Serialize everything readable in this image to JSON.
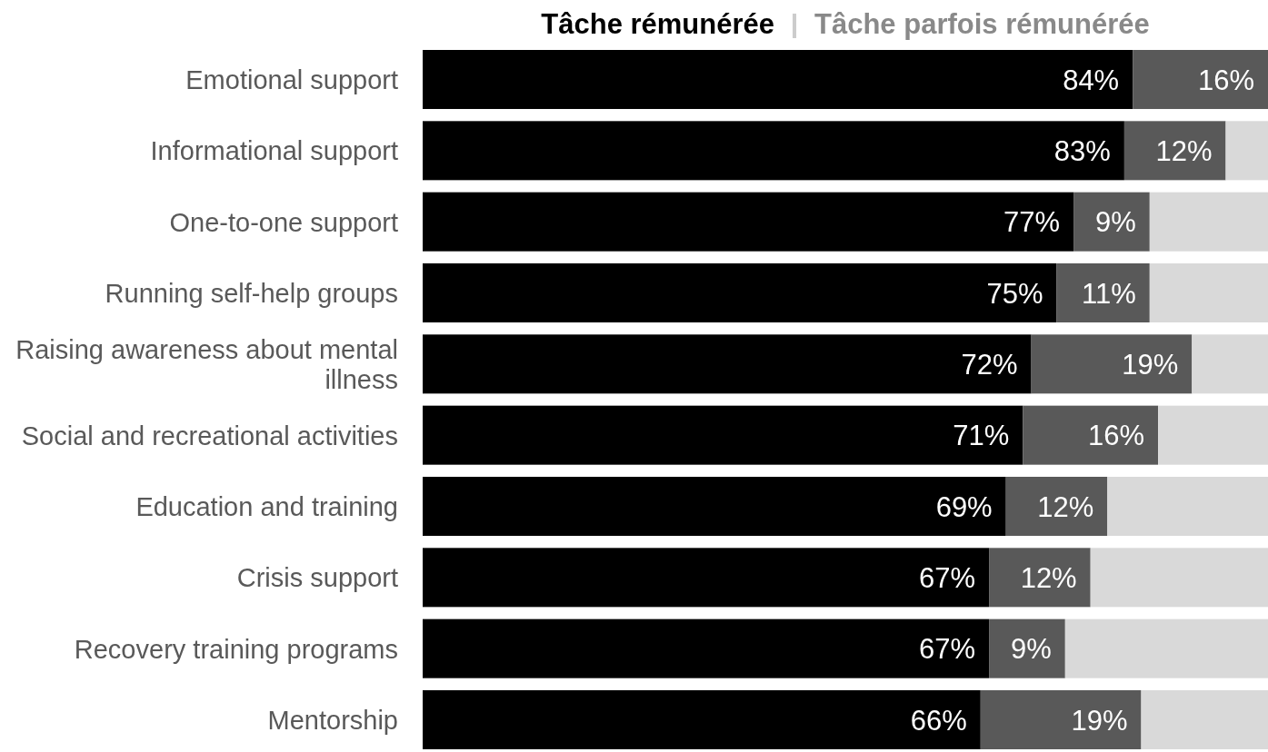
{
  "chart_data": {
    "type": "bar",
    "orientation": "horizontal",
    "stacked": true,
    "categories": [
      "Emotional support",
      "Informational support",
      "One-to-one support",
      "Running self-help groups",
      "Raising awareness about mental illness",
      "Social and recreational activities",
      "Education and training",
      "Crisis support",
      "Recovery training programs",
      "Mentorship"
    ],
    "series": [
      {
        "name": "Tâche rémunérée",
        "color": "#000000",
        "values": [
          84,
          83,
          77,
          75,
          72,
          71,
          69,
          67,
          67,
          66
        ],
        "value_labels": [
          "84%",
          "83%",
          "77%",
          "75%",
          "72%",
          "71%",
          "69%",
          "67%",
          "67%",
          "66%"
        ]
      },
      {
        "name": "Tâche parfois rémunérée",
        "color": "#595959",
        "values": [
          16,
          12,
          9,
          11,
          19,
          16,
          12,
          12,
          9,
          19
        ],
        "value_labels": [
          "16%",
          "12%",
          "9%",
          "11%",
          "19%",
          "16%",
          "12%",
          "12%",
          "9%",
          "19%"
        ]
      },
      {
        "color": "#d9d9d9",
        "values": [
          null,
          5,
          14,
          14,
          9,
          13,
          19,
          21,
          24,
          15
        ]
      }
    ],
    "xlim": [
      0,
      100
    ],
    "legend": "top",
    "tick_labels": "y"
  }
}
